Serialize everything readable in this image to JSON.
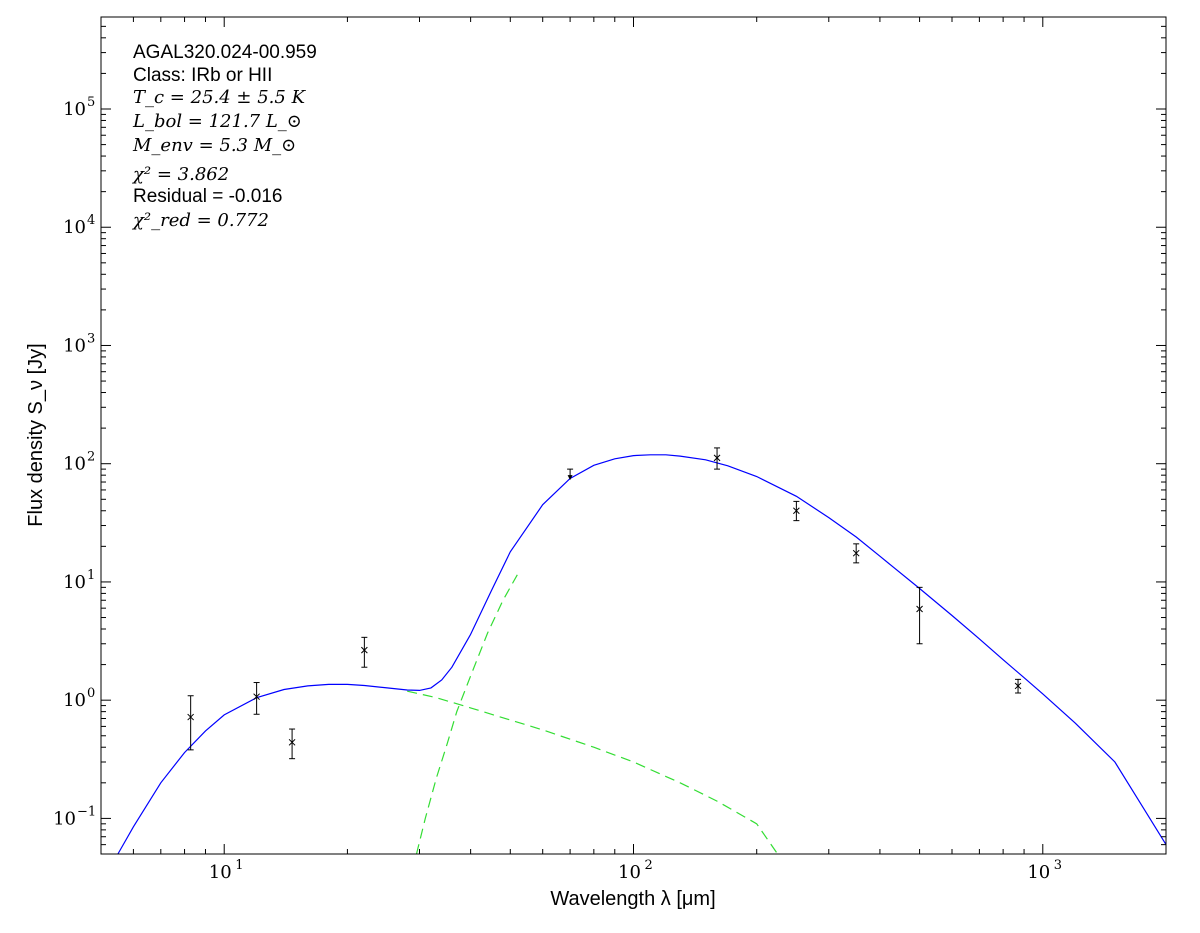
{
  "chart_data": {
    "type": "scatter",
    "xscale": "log",
    "yscale": "log",
    "xlim": [
      5,
      2000
    ],
    "ylim": [
      0.05,
      600000
    ],
    "xlabel": "Wavelength λ [μm]",
    "ylabel": "Flux density S_ν [Jy]",
    "x_ticks": [
      {
        "value": 10,
        "base": "10",
        "exp": "1"
      },
      {
        "value": 100,
        "base": "10",
        "exp": "2"
      },
      {
        "value": 1000,
        "base": "10",
        "exp": "3"
      }
    ],
    "y_ticks": [
      {
        "value": 0.1,
        "base": "10",
        "exp": "−1"
      },
      {
        "value": 1,
        "base": "10",
        "exp": "0"
      },
      {
        "value": 10,
        "base": "10",
        "exp": "1"
      },
      {
        "value": 100,
        "base": "10",
        "exp": "2"
      },
      {
        "value": 1000,
        "base": "10",
        "exp": "3"
      },
      {
        "value": 10000,
        "base": "10",
        "exp": "4"
      },
      {
        "value": 100000,
        "base": "10",
        "exp": "5"
      }
    ],
    "annotations": {
      "name": "AGAL320.024-00.959",
      "class": "Class: IRb or HII",
      "tc": "T_c = 25.4 ± 5.5 K",
      "lbol": "L_bol = 121.7 L_⊙",
      "menv": "M_env = 5.3 M_⊙",
      "chi2": "χ² = 3.862",
      "residual": "Residual = -0.016",
      "chi2red": "χ²_red = 0.772"
    },
    "points": [
      {
        "x": 8.28,
        "y": 0.72,
        "ylo": 0.38,
        "yhi": 1.09
      },
      {
        "x": 12.0,
        "y": 1.07,
        "ylo": 0.76,
        "yhi": 1.41
      },
      {
        "x": 14.65,
        "y": 0.44,
        "ylo": 0.32,
        "yhi": 0.57
      },
      {
        "x": 22.0,
        "y": 2.65,
        "ylo": 1.9,
        "yhi": 3.4
      },
      {
        "x": 160,
        "y": 112,
        "ylo": 90,
        "yhi": 136
      },
      {
        "x": 250,
        "y": 40,
        "ylo": 33,
        "yhi": 48
      },
      {
        "x": 350,
        "y": 17.5,
        "ylo": 14.5,
        "yhi": 21
      },
      {
        "x": 500,
        "y": 5.9,
        "ylo": 3.0,
        "yhi": 9.0
      },
      {
        "x": 870,
        "y": 1.32,
        "ylo": 1.15,
        "yhi": 1.5
      }
    ],
    "upper_limits": [
      {
        "x": 70,
        "y": 90
      }
    ],
    "series": [
      {
        "role": "total model",
        "style": "solid",
        "color": "#0000ff",
        "x": [
          5.5,
          6,
          7,
          8,
          9,
          10,
          12,
          14,
          16,
          18,
          20,
          22,
          25,
          28,
          30,
          32,
          34,
          36,
          40,
          45,
          50,
          60,
          70,
          80,
          90,
          100,
          110,
          120,
          130,
          150,
          170,
          200,
          250,
          300,
          350,
          400,
          500,
          600,
          700,
          800,
          900,
          1000,
          1200,
          1500,
          2000
        ],
        "y": [
          0.05,
          0.085,
          0.2,
          0.36,
          0.55,
          0.75,
          1.05,
          1.23,
          1.32,
          1.36,
          1.36,
          1.33,
          1.27,
          1.22,
          1.21,
          1.27,
          1.48,
          1.9,
          3.6,
          8.5,
          18,
          45,
          75,
          97,
          110,
          117,
          119,
          119,
          116,
          108,
          96,
          78,
          53,
          35,
          24,
          16.5,
          8.8,
          5.2,
          3.3,
          2.2,
          1.55,
          1.13,
          0.64,
          0.3,
          0.06
        ]
      },
      {
        "role": "warm component",
        "style": "dashed",
        "color": "#33dd33",
        "x": [
          28,
          30,
          33,
          36,
          40,
          50,
          60,
          80,
          100,
          130,
          160,
          200,
          225
        ],
        "y": [
          1.19,
          1.13,
          1.05,
          0.96,
          0.86,
          0.68,
          0.56,
          0.4,
          0.3,
          0.2,
          0.14,
          0.09,
          0.05
        ]
      },
      {
        "role": "cold component",
        "style": "dashed",
        "color": "#33dd33",
        "x": [
          29.5,
          31,
          33,
          35,
          37,
          40,
          44,
          48,
          52
        ],
        "y": [
          0.05,
          0.1,
          0.22,
          0.42,
          0.8,
          1.6,
          3.7,
          7.0,
          11.5
        ]
      }
    ]
  }
}
